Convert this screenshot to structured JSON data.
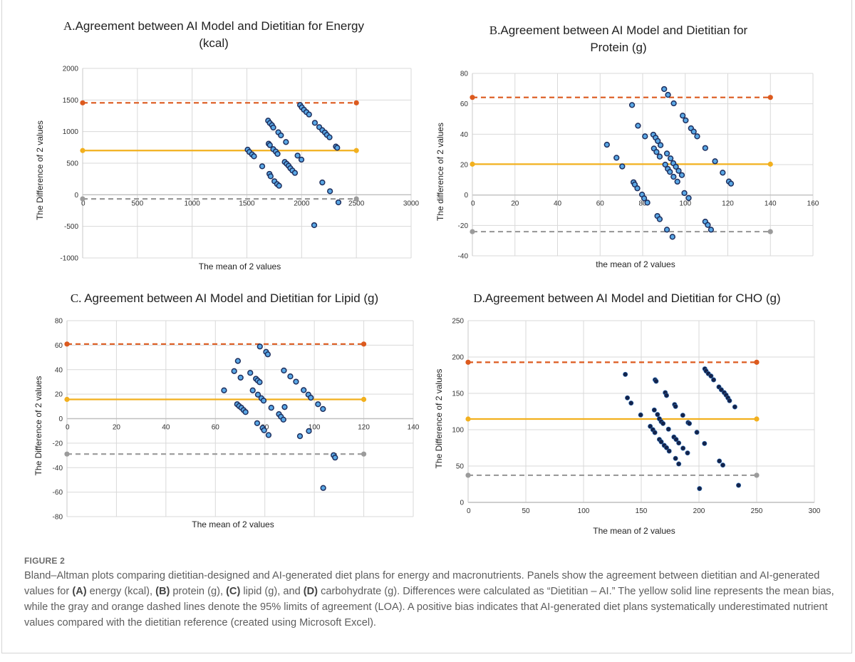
{
  "figure": {
    "label": "FIGURE 2",
    "caption_parts": [
      {
        "t": "Bland–Altman plots comparing dietitian-designed and AI-generated diet plans for energy and macronutrients. Panels show the agreement between dietitian and AI-generated values for ",
        "b": false
      },
      {
        "t": "(A)",
        "b": true
      },
      {
        "t": " energy (kcal), ",
        "b": false
      },
      {
        "t": "(B)",
        "b": true
      },
      {
        "t": " protein (g), ",
        "b": false
      },
      {
        "t": "(C)",
        "b": true
      },
      {
        "t": " lipid (g), and ",
        "b": false
      },
      {
        "t": "(D)",
        "b": true
      },
      {
        "t": " carbohydrate (g). Differences were calculated as “Dietitian – AI.” The yellow solid line represents the mean bias, while the gray and orange dashed lines denote the 95% limits of agreement (LOA). A positive bias indicates that AI-generated diet plans systematically underestimated nutrient values compared with the dietitian reference (created using Microsoft Excel).",
        "b": false
      }
    ],
    "colors": {
      "mean_bias": "#F2B01E",
      "upper_loa": "#DC5A1E",
      "lower_loa": "#9B9B9B",
      "marker_fill": "#5AA8E6",
      "marker_edge": "#1E2F5E",
      "marker_fill_dark": "#14234A",
      "grid": "#d9d9d9"
    }
  },
  "chart_data": [
    {
      "id": "A",
      "type": "scatter",
      "title_letter": "A.",
      "title_lines": [
        "Agreement between AI Model and Dietitian for Energy",
        "(kcal)"
      ],
      "xlabel": "The mean of 2 values",
      "ylabel": "The Difference of 2 values",
      "xlim": [
        0,
        3000
      ],
      "ylim": [
        -1000,
        2000
      ],
      "xticks": [
        0,
        500,
        1000,
        1500,
        2000,
        2500,
        3000
      ],
      "yticks": [
        -1000,
        -500,
        0,
        500,
        1000,
        1500,
        2000
      ],
      "grid": true,
      "mean_bias": 700,
      "upper_loa": 1455,
      "lower_loa": -65,
      "line_x_range": [
        0,
        2500
      ],
      "marker_style": "light",
      "points": [
        [
          1507,
          714
        ],
        [
          1523,
          677
        ],
        [
          1547,
          639
        ],
        [
          1565,
          609
        ],
        [
          1640,
          451
        ],
        [
          1694,
          1173
        ],
        [
          1710,
          1135
        ],
        [
          1729,
          1102
        ],
        [
          1741,
          1064
        ],
        [
          1787,
          989
        ],
        [
          1811,
          940
        ],
        [
          1857,
          835
        ],
        [
          1699,
          808
        ],
        [
          1710,
          786
        ],
        [
          1741,
          722
        ],
        [
          1764,
          684
        ],
        [
          1780,
          647
        ],
        [
          1706,
          331
        ],
        [
          1717,
          293
        ],
        [
          1752,
          214
        ],
        [
          1776,
          169
        ],
        [
          1794,
          143
        ],
        [
          1846,
          519
        ],
        [
          1864,
          489
        ],
        [
          1881,
          459
        ],
        [
          1897,
          421
        ],
        [
          1916,
          384
        ],
        [
          1939,
          346
        ],
        [
          1963,
          620
        ],
        [
          1998,
          556
        ],
        [
          1986,
          1421
        ],
        [
          2002,
          1383
        ],
        [
          2021,
          1346
        ],
        [
          2044,
          1308
        ],
        [
          2068,
          1271
        ],
        [
          2121,
          1139
        ],
        [
          2161,
          1071
        ],
        [
          2189,
          1023
        ],
        [
          2213,
          985
        ],
        [
          2231,
          947
        ],
        [
          2255,
          910
        ],
        [
          2313,
          763
        ],
        [
          2325,
          744
        ],
        [
          2189,
          195
        ],
        [
          2259,
          56
        ],
        [
          2336,
          -120
        ],
        [
          2115,
          -481
        ]
      ]
    },
    {
      "id": "B",
      "type": "scatter",
      "title_letter": "B.",
      "title_lines": [
        "Agreement between AI Model and Dietitian for",
        "Protein (g)"
      ],
      "xlabel": "the mean of 2 values",
      "ylabel": "The difference of 2 values",
      "xlim": [
        0,
        160
      ],
      "ylim": [
        -40,
        80
      ],
      "xticks": [
        0,
        20,
        40,
        60,
        80,
        100,
        120,
        140,
        160
      ],
      "yticks": [
        -40,
        -20,
        0,
        20,
        40,
        60,
        80
      ],
      "grid": true,
      "mean_bias": 20.3,
      "upper_loa": 64.2,
      "lower_loa": -24.1,
      "line_x_range": [
        0,
        140
      ],
      "marker_style": "light",
      "points": [
        [
          63.2,
          33.1
        ],
        [
          67.7,
          24.5
        ],
        [
          70.4,
          18.8
        ],
        [
          75.0,
          59.2
        ],
        [
          75.7,
          8.4
        ],
        [
          76.3,
          6.9
        ],
        [
          77.5,
          4.4
        ],
        [
          77.8,
          45.6
        ],
        [
          79.7,
          0.3
        ],
        [
          80.7,
          -2.2
        ],
        [
          82.2,
          -5.0
        ],
        [
          81.1,
          38.6
        ],
        [
          85.0,
          39.7
        ],
        [
          86.1,
          37.7
        ],
        [
          87.1,
          35.5
        ],
        [
          88.4,
          32.8
        ],
        [
          85.3,
          30.6
        ],
        [
          86.5,
          28.3
        ],
        [
          88.0,
          25.3
        ],
        [
          86.9,
          -13.8
        ],
        [
          88.0,
          -15.9
        ],
        [
          90.1,
          69.7
        ],
        [
          91.9,
          65.9
        ],
        [
          94.6,
          60.3
        ],
        [
          91.4,
          27.3
        ],
        [
          93.1,
          24.1
        ],
        [
          94.4,
          20.9
        ],
        [
          95.6,
          18.6
        ],
        [
          96.9,
          15.9
        ],
        [
          98.4,
          13.1
        ],
        [
          90.6,
          20.0
        ],
        [
          91.8,
          17.2
        ],
        [
          92.8,
          15.2
        ],
        [
          94.5,
          12.0
        ],
        [
          96.3,
          8.8
        ],
        [
          91.4,
          -22.8
        ],
        [
          94.0,
          -27.5
        ],
        [
          98.8,
          52.2
        ],
        [
          100.2,
          49.1
        ],
        [
          99.6,
          1.3
        ],
        [
          101.6,
          -2.0
        ],
        [
          102.7,
          43.9
        ],
        [
          104.0,
          41.7
        ],
        [
          105.6,
          38.6
        ],
        [
          109.4,
          30.9
        ],
        [
          109.4,
          -17.5
        ],
        [
          110.6,
          -19.7
        ],
        [
          112.1,
          -22.8
        ],
        [
          114.0,
          22.2
        ],
        [
          117.6,
          14.7
        ],
        [
          120.5,
          8.9
        ],
        [
          121.5,
          7.5
        ]
      ]
    },
    {
      "id": "C",
      "type": "scatter",
      "title_letter": "C.",
      "title_lines": [
        "Agreement between AI Model and Dietitian for Lipid (g)"
      ],
      "xlabel": "The mean of 2 values",
      "ylabel": "The Difference of 2 values",
      "xlim": [
        0,
        140
      ],
      "ylim": [
        -80,
        80
      ],
      "xticks": [
        0,
        20,
        40,
        60,
        80,
        100,
        120,
        140
      ],
      "yticks": [
        -80,
        -60,
        -40,
        -20,
        0,
        20,
        40,
        60,
        80
      ],
      "grid": true,
      "mean_bias": 15.7,
      "upper_loa": 60.9,
      "lower_loa": -28.9,
      "line_x_range": [
        0,
        120
      ],
      "marker_style": "light",
      "points": [
        [
          63.5,
          23.1
        ],
        [
          67.6,
          38.8
        ],
        [
          69.1,
          47.1
        ],
        [
          70.2,
          33.5
        ],
        [
          68.8,
          11.8
        ],
        [
          69.6,
          10.3
        ],
        [
          70.5,
          8.9
        ],
        [
          71.4,
          7.0
        ],
        [
          72.2,
          5.4
        ],
        [
          74.1,
          37.4
        ],
        [
          75.1,
          23.1
        ],
        [
          76.4,
          32.6
        ],
        [
          77.1,
          31.2
        ],
        [
          77.9,
          29.8
        ],
        [
          77.2,
          19.6
        ],
        [
          78.6,
          16.7
        ],
        [
          79.5,
          14.7
        ],
        [
          76.9,
          -3.7
        ],
        [
          78.0,
          58.9
        ],
        [
          79.1,
          -7.6
        ],
        [
          79.7,
          -9.5
        ],
        [
          80.5,
          54.5
        ],
        [
          81.2,
          52.5
        ],
        [
          81.5,
          -13.4
        ],
        [
          82.6,
          8.9
        ],
        [
          85.7,
          3.7
        ],
        [
          86.5,
          1.6
        ],
        [
          87.5,
          -0.8
        ],
        [
          87.7,
          39.3
        ],
        [
          88.0,
          9.5
        ],
        [
          90.3,
          34.5
        ],
        [
          92.6,
          30.2
        ],
        [
          94.2,
          -14.3
        ],
        [
          95.7,
          23.3
        ],
        [
          97.6,
          19.6
        ],
        [
          98.6,
          17.1
        ],
        [
          97.8,
          -10.1
        ],
        [
          101.5,
          11.8
        ],
        [
          103.5,
          7.9
        ],
        [
          103.6,
          -56.6
        ],
        [
          107.8,
          -29.8
        ],
        [
          108.4,
          -31.8
        ]
      ]
    },
    {
      "id": "D",
      "type": "scatter",
      "title_letter": "D.",
      "title_lines": [
        "Agreement between AI Model and Dietitian for CHO (g)"
      ],
      "xlabel": "The mean of 2 values",
      "ylabel": "The Difference of 2 values",
      "xlim": [
        0,
        300
      ],
      "ylim": [
        0,
        250
      ],
      "xticks": [
        0,
        50,
        100,
        150,
        200,
        250,
        300
      ],
      "yticks": [
        0,
        50,
        100,
        150,
        200,
        250
      ],
      "grid": true,
      "mean_bias": 114.7,
      "upper_loa": 192.8,
      "lower_loa": 37.3,
      "line_x_range": [
        0,
        250
      ],
      "marker_style": "dark",
      "points": [
        [
          136.2,
          176.1
        ],
        [
          138.0,
          143.8
        ],
        [
          141.2,
          136.6
        ],
        [
          149.5,
          120.3
        ],
        [
          157.8,
          104.6
        ],
        [
          160.1,
          100.0
        ],
        [
          161.8,
          96.1
        ],
        [
          161.3,
          127.1
        ],
        [
          164.1,
          120.9
        ],
        [
          162.0,
          168.6
        ],
        [
          162.9,
          166.7
        ],
        [
          165.7,
          115.0
        ],
        [
          167.3,
          111.1
        ],
        [
          168.9,
          108.5
        ],
        [
          165.7,
          86.6
        ],
        [
          167.3,
          83.3
        ],
        [
          169.9,
          78.4
        ],
        [
          171.9,
          75.2
        ],
        [
          174.2,
          70.6
        ],
        [
          170.8,
          151.0
        ],
        [
          171.9,
          147.1
        ],
        [
          173.6,
          100.7
        ],
        [
          178.9,
          134.6
        ],
        [
          179.7,
          132.0
        ],
        [
          178.3,
          89.9
        ],
        [
          180.2,
          86.6
        ],
        [
          182.5,
          81.7
        ],
        [
          179.7,
          60.5
        ],
        [
          182.5,
          52.9
        ],
        [
          186.0,
          119.9
        ],
        [
          186.2,
          74.5
        ],
        [
          190.6,
          109.8
        ],
        [
          191.7,
          108.5
        ],
        [
          190.1,
          68.0
        ],
        [
          198.2,
          96.4
        ],
        [
          200.5,
          19.0
        ],
        [
          204.8,
          81.0
        ],
        [
          205.1,
          183.7
        ],
        [
          206.2,
          180.7
        ],
        [
          208.1,
          177.1
        ],
        [
          210.4,
          173.9
        ],
        [
          212.7,
          168.6
        ],
        [
          217.3,
          158.8
        ],
        [
          219.4,
          154.9
        ],
        [
          221.9,
          151.0
        ],
        [
          223.5,
          147.7
        ],
        [
          225.1,
          143.8
        ],
        [
          226.5,
          139.9
        ],
        [
          231.1,
          131.4
        ],
        [
          217.7,
          56.9
        ],
        [
          220.7,
          51.3
        ],
        [
          234.3,
          23.5
        ]
      ]
    }
  ]
}
